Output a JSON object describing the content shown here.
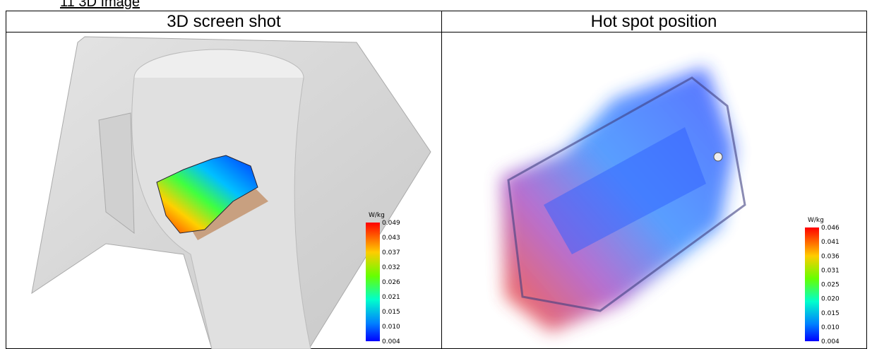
{
  "heading": "11 3D Image",
  "table": {
    "headers": [
      "3D screen shot",
      "Hot spot position"
    ],
    "colorbars": [
      {
        "unit": "W/kg",
        "labels": [
          "0.049",
          "0.043",
          "0.037",
          "0.032",
          "0.026",
          "0.021",
          "0.015",
          "0.010",
          "0.004"
        ]
      },
      {
        "unit": "W/kg",
        "labels": [
          "0.046",
          "0.041",
          "0.036",
          "0.031",
          "0.025",
          "0.020",
          "0.015",
          "0.010",
          "0.004"
        ]
      }
    ]
  }
}
